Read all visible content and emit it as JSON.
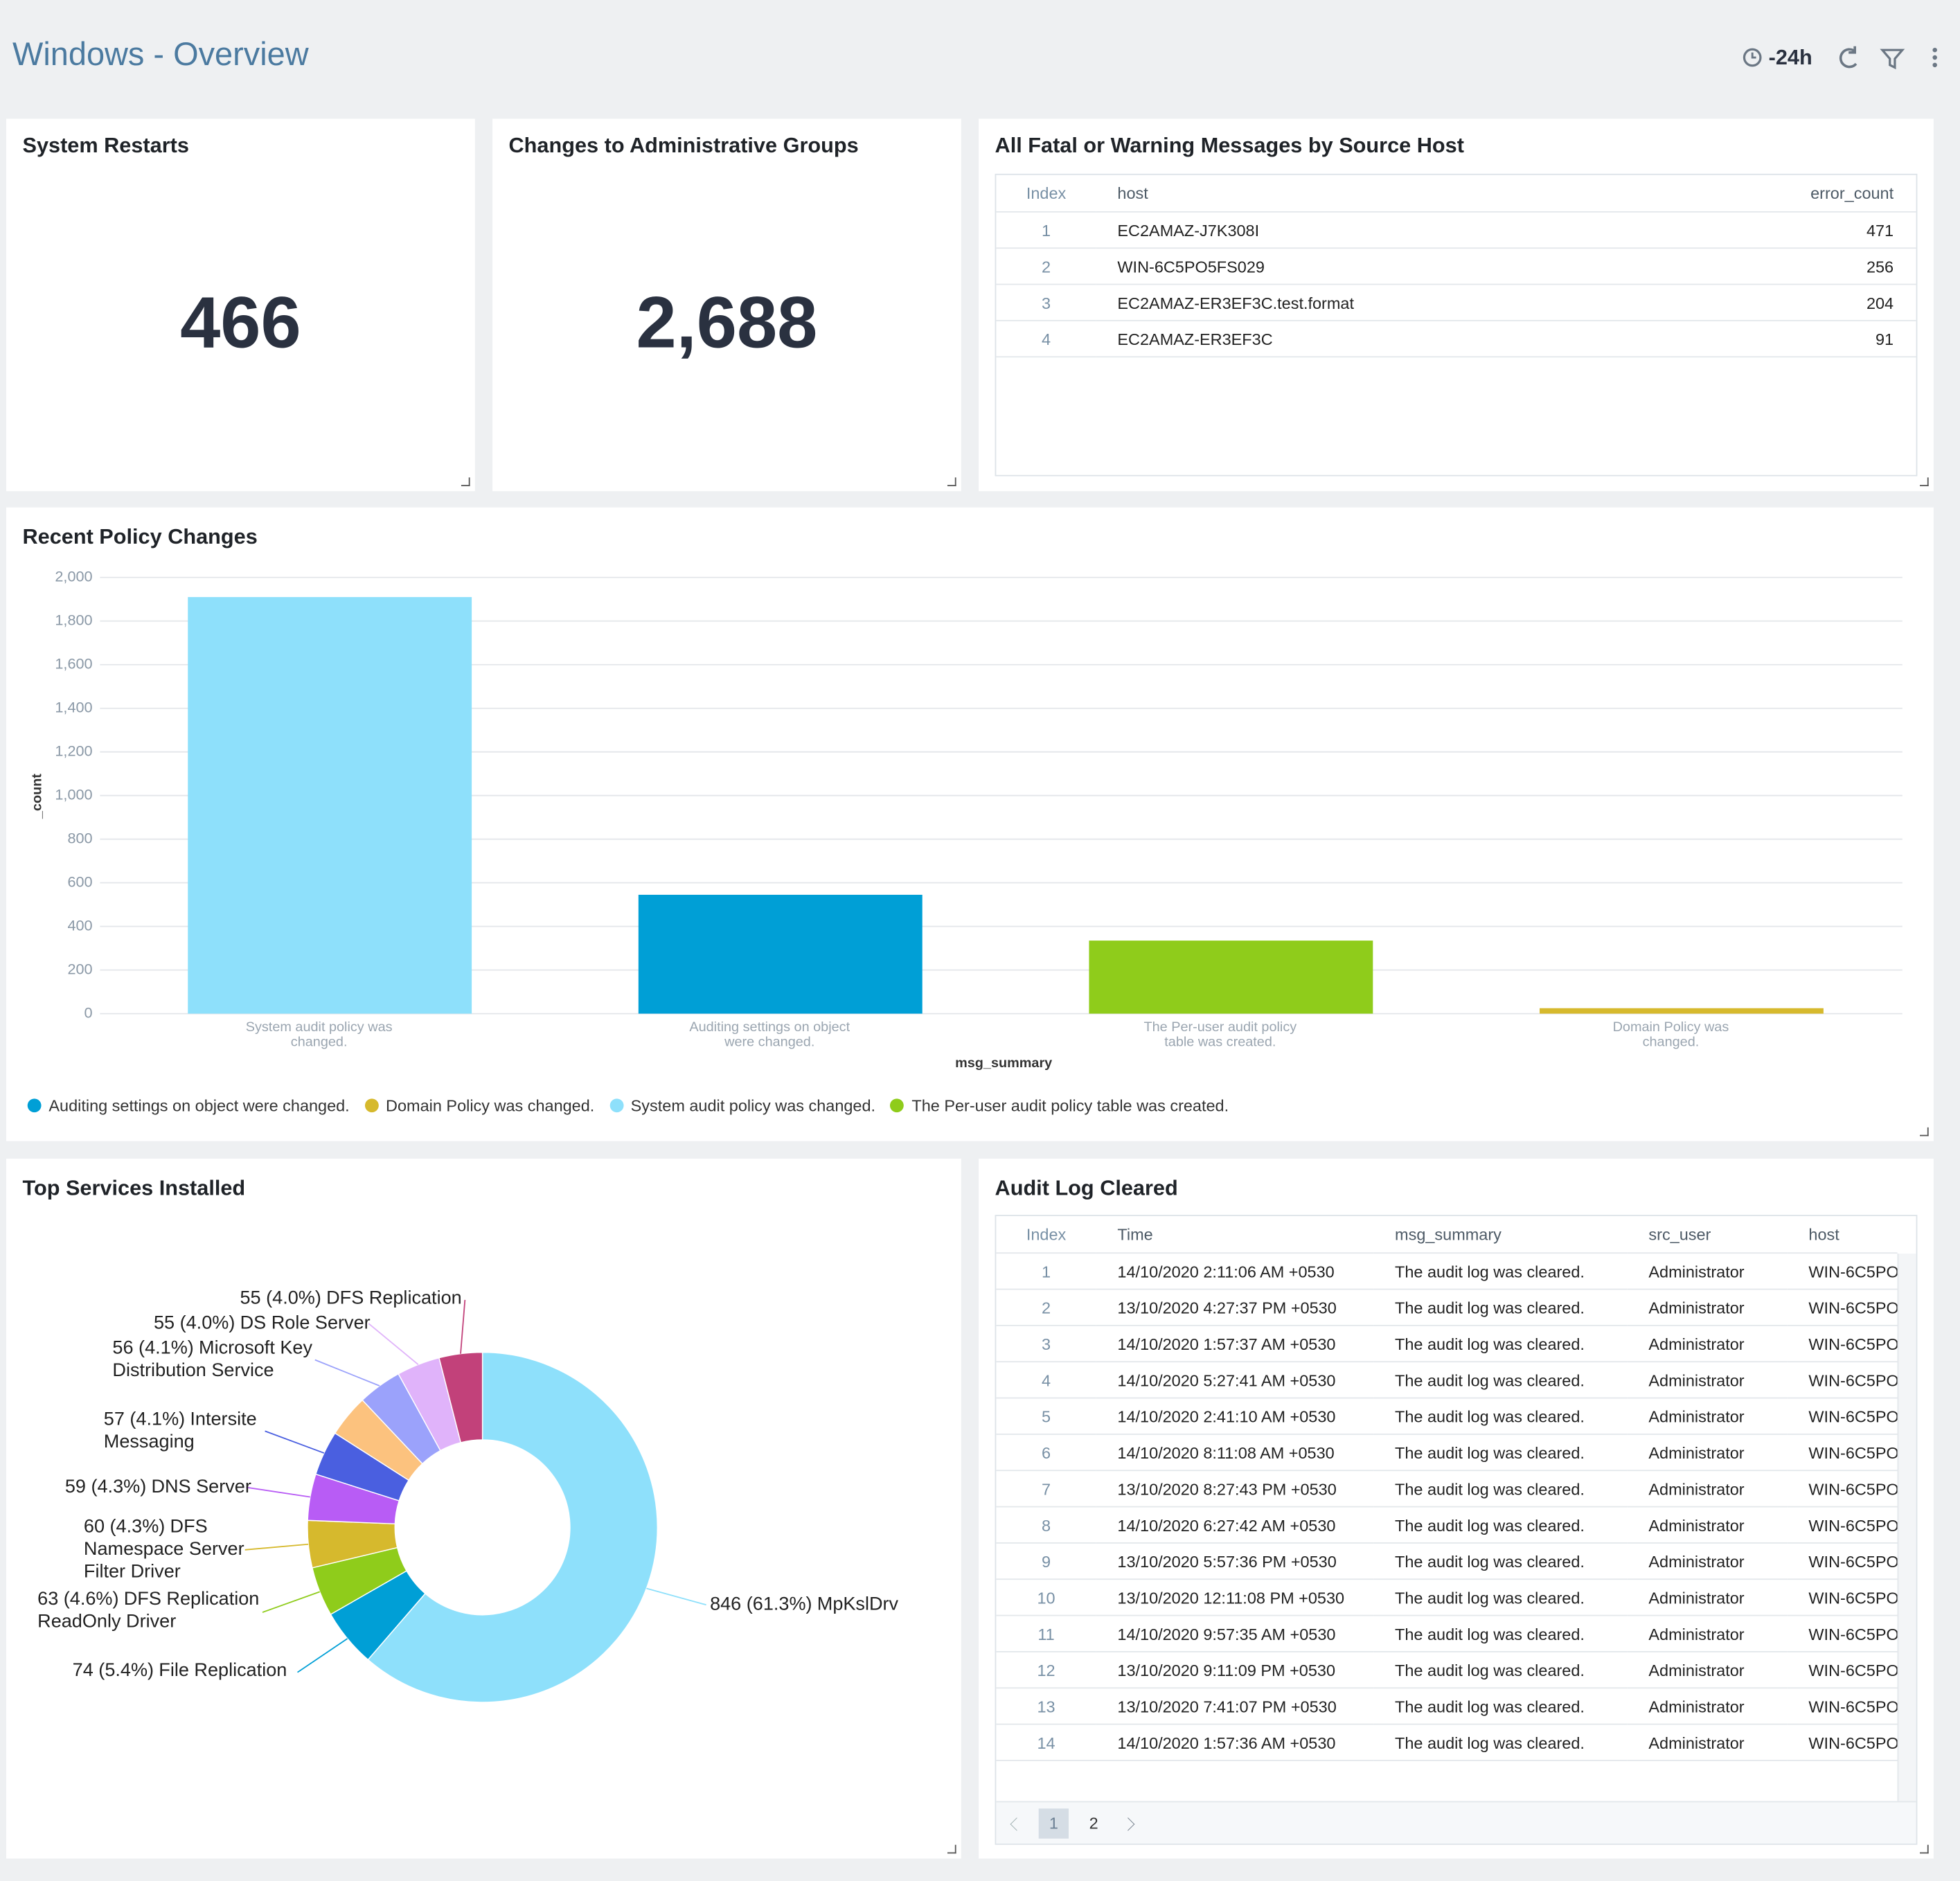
{
  "header": {
    "title": "Windows - Overview",
    "time_range": "-24h"
  },
  "stats": [
    {
      "title": "System Restarts",
      "value": 466
    },
    {
      "title": "Changes to Administrative Groups",
      "value": "2,688"
    }
  ],
  "fatal_table": {
    "title": "All Fatal or Warning Messages by Source Host",
    "columns": [
      "Index",
      "host",
      "error_count"
    ],
    "rows": [
      [
        1,
        "EC2AMAZ-J7K308I",
        471
      ],
      [
        2,
        "WIN-6C5PO5FS029",
        256
      ],
      [
        3,
        "EC2AMAZ-ER3EF3C.test.format",
        204
      ],
      [
        4,
        "EC2AMAZ-ER3EF3C",
        91
      ]
    ]
  },
  "chart_data": [
    {
      "type": "bar",
      "title": "Recent Policy Changes",
      "x_label": "msg_summary",
      "y_label": "_count",
      "categories": [
        "System audit policy was changed.",
        "Auditing settings on object were changed.",
        "The Per-user audit policy table was created.",
        "Domain Policy was changed."
      ],
      "values": [
        1910,
        545,
        335,
        25
      ],
      "colors": [
        "#8ee0fb",
        "#009fd6",
        "#8fcc1b",
        "#d6b92d"
      ],
      "ylim": [
        0,
        2000
      ],
      "yticks": [
        0,
        200,
        400,
        600,
        800,
        {
          "value": 1000,
          "label": "1,000"
        },
        {
          "value": 1200,
          "label": "1,200"
        },
        {
          "value": 1400,
          "label": "1,400"
        },
        {
          "value": 1600,
          "label": "1,600"
        },
        {
          "value": 1800,
          "label": "1,800"
        },
        {
          "value": 2000,
          "label": "2,000"
        }
      ],
      "grid": true,
      "legend": [
        {
          "name": "Auditing settings on object were changed.",
          "color": "#009fd6"
        },
        {
          "name": "Domain Policy was changed.",
          "color": "#d6b92d"
        },
        {
          "name": "System audit policy was changed.",
          "color": "#8ee0fb"
        },
        {
          "name": "The Per-user audit policy table was created.",
          "color": "#8fcc1b"
        }
      ]
    },
    {
      "type": "pie",
      "title": "Top Services Installed",
      "categories": [
        "MpKslDrv",
        "File Replication",
        "DFS Replication ReadOnly Driver",
        "DFS Namespace Server Filter Driver",
        "DNS Server",
        "Intersite Messaging",
        null,
        "Microsoft Key Distribution Service",
        "DS Role Server",
        "DFS Replication"
      ],
      "values": [
        846,
        74,
        63,
        60,
        59,
        57,
        54,
        56,
        55,
        55
      ],
      "value_labels": [
        "846 (61.3%)",
        "74 (5.4%)",
        "63 (4.6%)",
        "60 (4.3%)",
        "59 (4.3%)",
        "57 (4.1%)",
        null,
        "56 (4.1%)",
        "55 (4.0%)",
        "55 (4.0%)"
      ],
      "colors": [
        "#8ee0fb",
        "#009fd6",
        "#8fcc1b",
        "#d6b92d",
        "#b85cf5",
        "#4a5fe0",
        "#fcc27e",
        "#9ba2fb",
        "#e0b3fa",
        "#c2417a"
      ]
    }
  ],
  "audit_table": {
    "title": "Audit Log Cleared",
    "columns": [
      "Index",
      "Time",
      "msg_summary",
      "src_user",
      "host"
    ],
    "rows": [
      [
        1,
        "14/10/2020 2:11:06 AM +0530",
        "The audit log was cleared.",
        "Administrator",
        "WIN-6C5PO"
      ],
      [
        2,
        "13/10/2020 4:27:37 PM +0530",
        "The audit log was cleared.",
        "Administrator",
        "WIN-6C5PO"
      ],
      [
        3,
        "14/10/2020 1:57:37 AM +0530",
        "The audit log was cleared.",
        "Administrator",
        "WIN-6C5PO"
      ],
      [
        4,
        "14/10/2020 5:27:41 AM +0530",
        "The audit log was cleared.",
        "Administrator",
        "WIN-6C5PO"
      ],
      [
        5,
        "14/10/2020 2:41:10 AM +0530",
        "The audit log was cleared.",
        "Administrator",
        "WIN-6C5PO"
      ],
      [
        6,
        "14/10/2020 8:11:08 AM +0530",
        "The audit log was cleared.",
        "Administrator",
        "WIN-6C5PO"
      ],
      [
        7,
        "13/10/2020 8:27:43 PM +0530",
        "The audit log was cleared.",
        "Administrator",
        "WIN-6C5PO"
      ],
      [
        8,
        "14/10/2020 6:27:42 AM +0530",
        "The audit log was cleared.",
        "Administrator",
        "WIN-6C5PO"
      ],
      [
        9,
        "13/10/2020 5:57:36 PM +0530",
        "The audit log was cleared.",
        "Administrator",
        "WIN-6C5PO"
      ],
      [
        10,
        "13/10/2020 12:11:08 PM +0530",
        "The audit log was cleared.",
        "Administrator",
        "WIN-6C5PO"
      ],
      [
        11,
        "14/10/2020 9:57:35 AM +0530",
        "The audit log was cleared.",
        "Administrator",
        "WIN-6C5PO"
      ],
      [
        12,
        "13/10/2020 9:11:09 PM +0530",
        "The audit log was cleared.",
        "Administrator",
        "WIN-6C5PO"
      ],
      [
        13,
        "13/10/2020 7:41:07 PM +0530",
        "The audit log was cleared.",
        "Administrator",
        "WIN-6C5PO"
      ],
      [
        14,
        "14/10/2020 1:57:36 AM +0530",
        "The audit log was cleared.",
        "Administrator",
        "WIN-6C5PO"
      ]
    ],
    "pages": [
      1,
      2
    ]
  }
}
